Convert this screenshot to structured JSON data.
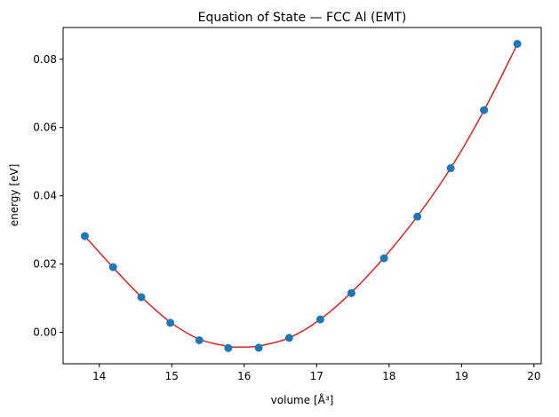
{
  "chart_data": {
    "type": "scatter",
    "title": "Equation of State — FCC Al (EMT)",
    "xlabel": "volume [Å³]",
    "ylabel": "energy [eV]",
    "xlim": [
      13.5,
      20.1
    ],
    "ylim": [
      -0.0092,
      0.0893
    ],
    "xticks": [
      {
        "value": 14,
        "label": "14"
      },
      {
        "value": 15,
        "label": "15"
      },
      {
        "value": 16,
        "label": "16"
      },
      {
        "value": 17,
        "label": "17"
      },
      {
        "value": 18,
        "label": "18"
      },
      {
        "value": 19,
        "label": "19"
      },
      {
        "value": 20,
        "label": "20"
      }
    ],
    "yticks": [
      {
        "value": 0.0,
        "label": "0.00"
      },
      {
        "value": 0.02,
        "label": "0.02"
      },
      {
        "value": 0.04,
        "label": "0.04"
      },
      {
        "value": 0.06,
        "label": "0.06"
      },
      {
        "value": 0.08,
        "label": "0.08"
      }
    ],
    "grid": false,
    "series": [
      {
        "kind": "points",
        "color": "#1f77b4",
        "x": [
          13.8,
          14.19,
          14.58,
          14.98,
          15.38,
          15.78,
          16.2,
          16.62,
          17.05,
          17.48,
          17.93,
          18.39,
          18.85,
          19.31,
          19.77
        ],
        "y": [
          0.0282,
          0.0191,
          0.0103,
          0.0028,
          -0.0023,
          -0.0046,
          -0.0045,
          -0.0016,
          0.0038,
          0.0115,
          0.0217,
          0.0339,
          0.0481,
          0.0651,
          0.0845
        ]
      },
      {
        "kind": "fit-curve",
        "color": "#d62728",
        "x": [
          13.8,
          14.19,
          14.58,
          14.98,
          15.38,
          15.78,
          15.95,
          16.2,
          16.62,
          17.05,
          17.48,
          17.93,
          18.39,
          18.85,
          19.31,
          19.77
        ],
        "y": [
          0.0282,
          0.019,
          0.0104,
          0.003,
          -0.002,
          -0.0041,
          -0.0043,
          -0.004,
          -0.0016,
          0.0038,
          0.0117,
          0.0219,
          0.034,
          0.0481,
          0.065,
          0.0844
        ]
      }
    ]
  }
}
